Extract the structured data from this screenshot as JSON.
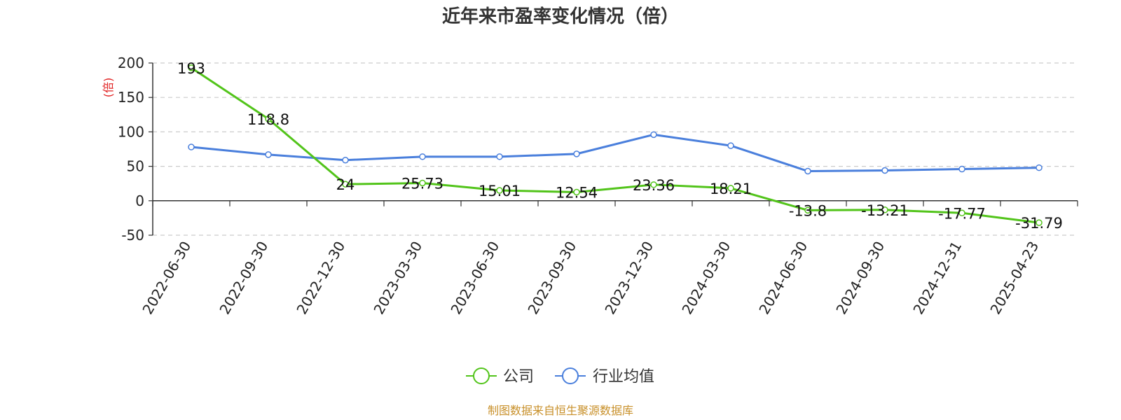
{
  "chart_data": {
    "type": "line",
    "title": "近年来市盈率变化情况（倍）",
    "ylabel": "(倍)",
    "xlabel": "",
    "ylim": [
      -50,
      200
    ],
    "yticks": [
      -50,
      0,
      50,
      100,
      150,
      200
    ],
    "grid": true,
    "legend_position": "bottom-center",
    "categories": [
      "2022-06-30",
      "2022-09-30",
      "2022-12-30",
      "2023-03-30",
      "2023-06-30",
      "2023-09-30",
      "2023-12-30",
      "2024-03-30",
      "2024-06-30",
      "2024-09-30",
      "2024-12-31",
      "2025-04-23"
    ],
    "series": [
      {
        "name": "公司",
        "color": "#52c41a",
        "values": [
          193,
          118.8,
          24,
          25.73,
          15.01,
          12.54,
          23.36,
          18.21,
          -13.8,
          -13.21,
          -17.77,
          -31.79
        ],
        "labels": [
          "193",
          "118.8",
          "24",
          "25.73",
          "15.01",
          "12.54",
          "23.36",
          "18.21",
          "-13.8",
          "-13.21",
          "-17.77",
          "-31.79"
        ]
      },
      {
        "name": "行业均值",
        "color": "#4a7fdc",
        "values": [
          78,
          67,
          59,
          64,
          64,
          68,
          96,
          80,
          43,
          44,
          46,
          48
        ]
      }
    ],
    "source_note": "制图数据来自恒生聚源数据库"
  }
}
